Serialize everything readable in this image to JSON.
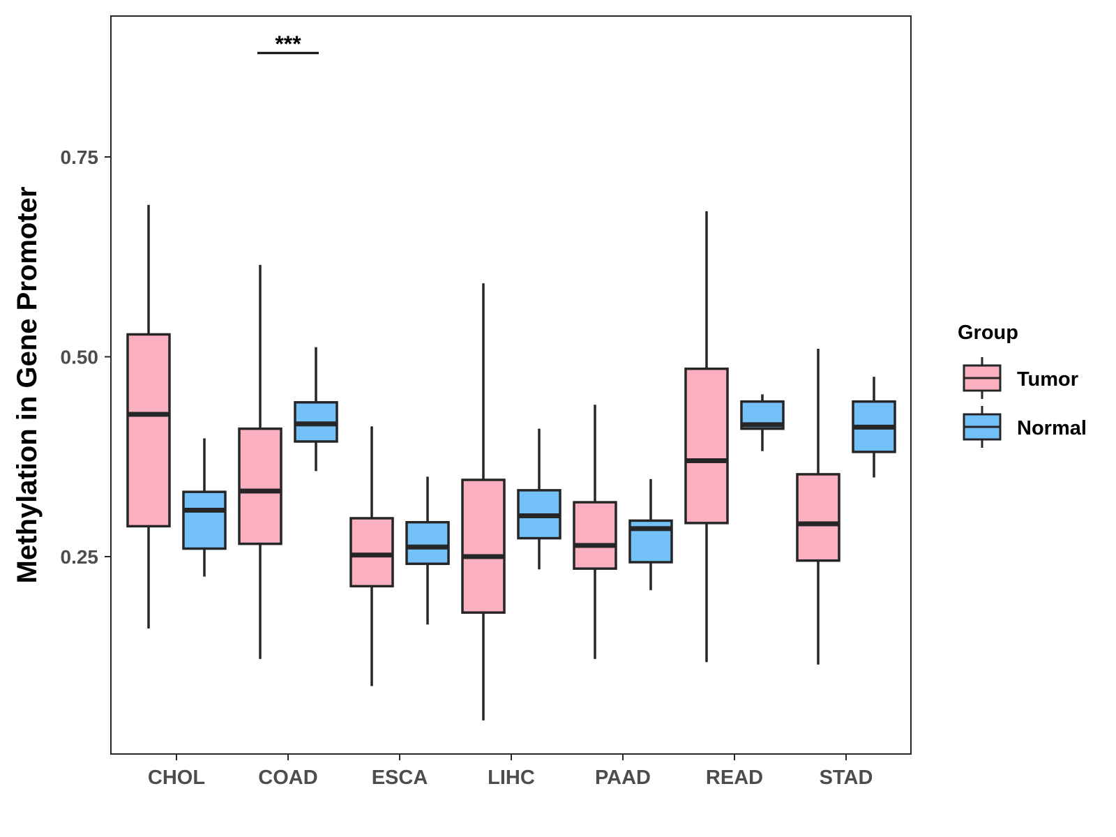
{
  "colors": {
    "tumor": "#FBB0C1",
    "normal": "#74C0F8",
    "stroke": "#262626",
    "panel_border": "#262626",
    "tick_text": "#4d4d4d"
  },
  "chart_data": {
    "type": "boxplot",
    "ylabel": "Methylation in Gene Promoter",
    "xlabel": "",
    "ylim": [
      0.0,
      0.92
    ],
    "yticks": [
      0.25,
      0.5,
      0.75
    ],
    "ytick_labels": [
      "0.25",
      "0.50",
      "0.75"
    ],
    "grid": false,
    "legend": {
      "title": "Group",
      "placement": "right",
      "entries": [
        "Tumor",
        "Normal"
      ]
    },
    "categories": [
      "CHOL",
      "COAD",
      "ESCA",
      "LIHC",
      "PAAD",
      "READ",
      "STAD"
    ],
    "series": [
      {
        "name": "Tumor",
        "boxes": [
          {
            "whisker_low": 0.16,
            "q1": 0.288,
            "median": 0.428,
            "q3": 0.528,
            "whisker_high": 0.69
          },
          {
            "whisker_low": 0.122,
            "q1": 0.266,
            "median": 0.332,
            "q3": 0.41,
            "whisker_high": 0.615
          },
          {
            "whisker_low": 0.088,
            "q1": 0.213,
            "median": 0.252,
            "q3": 0.298,
            "whisker_high": 0.413
          },
          {
            "whisker_low": 0.045,
            "q1": 0.18,
            "median": 0.25,
            "q3": 0.346,
            "whisker_high": 0.592
          },
          {
            "whisker_low": 0.122,
            "q1": 0.235,
            "median": 0.264,
            "q3": 0.318,
            "whisker_high": 0.44
          },
          {
            "whisker_low": 0.118,
            "q1": 0.292,
            "median": 0.37,
            "q3": 0.485,
            "whisker_high": 0.682
          },
          {
            "whisker_low": 0.115,
            "q1": 0.245,
            "median": 0.291,
            "q3": 0.353,
            "whisker_high": 0.51
          }
        ]
      },
      {
        "name": "Normal",
        "boxes": [
          {
            "whisker_low": 0.225,
            "q1": 0.26,
            "median": 0.308,
            "q3": 0.331,
            "whisker_high": 0.398
          },
          {
            "whisker_low": 0.357,
            "q1": 0.394,
            "median": 0.416,
            "q3": 0.443,
            "whisker_high": 0.512
          },
          {
            "whisker_low": 0.165,
            "q1": 0.241,
            "median": 0.262,
            "q3": 0.293,
            "whisker_high": 0.35
          },
          {
            "whisker_low": 0.234,
            "q1": 0.273,
            "median": 0.301,
            "q3": 0.333,
            "whisker_high": 0.41
          },
          {
            "whisker_low": 0.208,
            "q1": 0.243,
            "median": 0.285,
            "q3": 0.295,
            "whisker_high": 0.347
          },
          {
            "whisker_low": 0.382,
            "q1": 0.41,
            "median": 0.415,
            "q3": 0.444,
            "whisker_high": 0.453
          },
          {
            "whisker_low": 0.349,
            "q1": 0.381,
            "median": 0.412,
            "q3": 0.444,
            "whisker_high": 0.475
          }
        ]
      }
    ],
    "annotations": [
      {
        "category": "COAD",
        "text": "***",
        "y": 0.88
      }
    ]
  }
}
